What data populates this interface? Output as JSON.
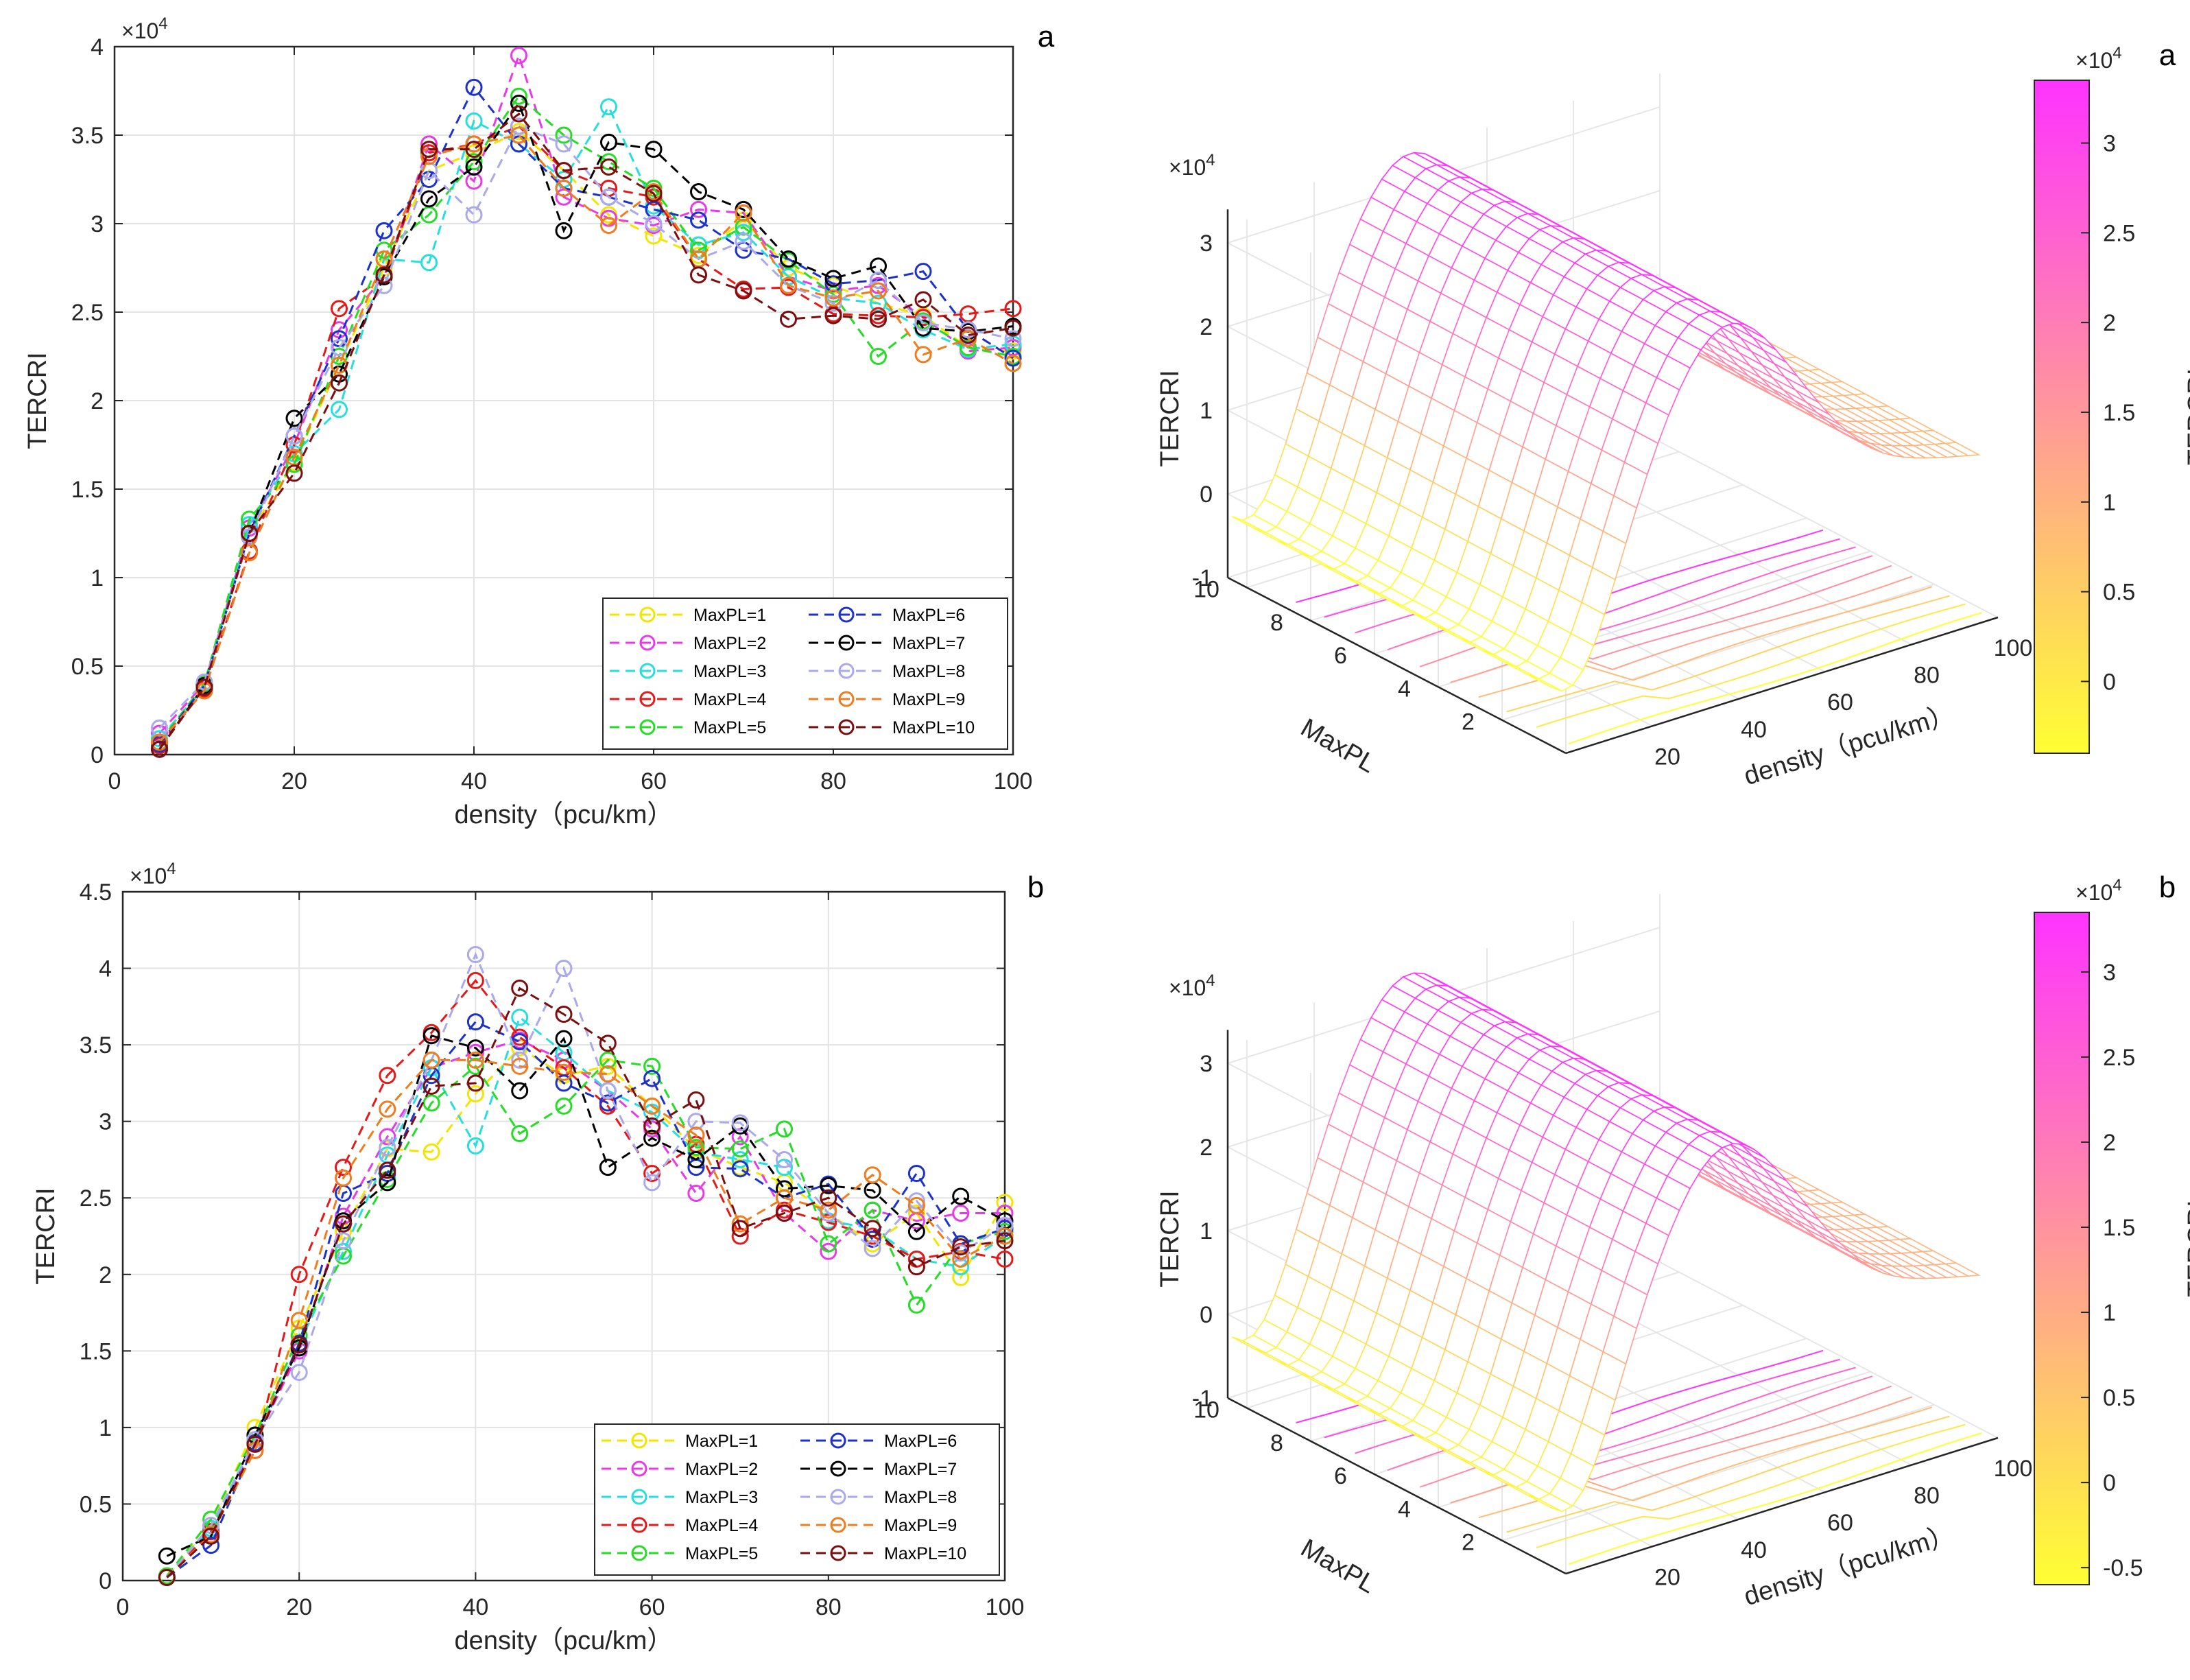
{
  "chart_data": [
    {
      "type": "line",
      "panel_label": "a",
      "xlabel": "density（pcu/km）",
      "ylabel": "TERCRI",
      "y_multiplier": "×10^4",
      "xlim": [
        0,
        100
      ],
      "ylim": [
        0,
        40000
      ],
      "x_ticks": [
        "0",
        "20",
        "40",
        "60",
        "80",
        "100"
      ],
      "y_ticks": [
        "0",
        "0.5",
        "1",
        "1.5",
        "2",
        "2.5",
        "3",
        "3.5",
        "4"
      ],
      "grid": true,
      "legend_position": "bottom-right",
      "x": [
        5,
        10,
        15,
        20,
        25,
        30,
        35,
        40,
        45,
        50,
        55,
        60,
        65,
        70,
        75,
        80,
        85,
        90,
        95,
        100
      ],
      "series": [
        {
          "name": "MaxPL=1",
          "color": "#f2e600",
          "values": [
            500,
            3900,
            12500,
            16500,
            22000,
            27500,
            33000,
            34000,
            35200,
            33000,
            30500,
            29300,
            28200,
            30200,
            27500,
            26500,
            25500,
            24800,
            23000,
            22800
          ]
        },
        {
          "name": "MaxPL=2",
          "color": "#e83be8",
          "values": [
            1200,
            4000,
            12800,
            17500,
            24000,
            27000,
            34500,
            32400,
            39500,
            31500,
            30300,
            29900,
            30800,
            30600,
            27000,
            26200,
            26500,
            24700,
            22800,
            23000
          ]
        },
        {
          "name": "MaxPL=3",
          "color": "#27dede",
          "values": [
            900,
            3800,
            13000,
            17000,
            19500,
            28000,
            27800,
            35800,
            34500,
            32500,
            36600,
            31000,
            28800,
            29500,
            27000,
            25800,
            25500,
            24000,
            22900,
            23200
          ]
        },
        {
          "name": "MaxPL=4",
          "color": "#e41a1a",
          "values": [
            500,
            3700,
            11500,
            17500,
            25200,
            27000,
            34000,
            34500,
            35500,
            33000,
            32000,
            31500,
            28000,
            26300,
            26400,
            24900,
            24800,
            24700,
            24900,
            25200
          ]
        },
        {
          "name": "MaxPL=5",
          "color": "#25dd25",
          "values": [
            700,
            4000,
            13300,
            16400,
            22500,
            28500,
            30500,
            33500,
            37200,
            35000,
            33500,
            32000,
            28500,
            29800,
            27900,
            26000,
            22500,
            24500,
            23000,
            22500
          ]
        },
        {
          "name": "MaxPL=6",
          "color": "#1c32c8",
          "values": [
            600,
            3900,
            12500,
            18000,
            23500,
            29600,
            32500,
            37700,
            34500,
            32000,
            31500,
            30800,
            30200,
            28500,
            28000,
            26600,
            26800,
            27300,
            24000,
            22400
          ]
        },
        {
          "name": "MaxPL=7",
          "color": "#000000",
          "values": [
            300,
            3900,
            12500,
            19000,
            21500,
            27000,
            31400,
            33200,
            36800,
            29600,
            34600,
            34200,
            31800,
            30800,
            28000,
            26900,
            27600,
            24100,
            23900,
            24200
          ]
        },
        {
          "name": "MaxPL=8",
          "color": "#a9a9ec",
          "values": [
            1500,
            4100,
            12300,
            18000,
            23000,
            26500,
            33000,
            30500,
            35500,
            34500,
            31500,
            30000,
            28000,
            29000,
            26500,
            25500,
            26800,
            24400,
            24000,
            23500
          ]
        },
        {
          "name": "MaxPL=9",
          "color": "#ed7d1e",
          "values": [
            700,
            3600,
            11400,
            16800,
            22000,
            28000,
            33800,
            34500,
            35000,
            32000,
            29900,
            31800,
            28000,
            30600,
            26500,
            25800,
            26200,
            22600,
            23500,
            22100
          ]
        },
        {
          "name": "MaxPL=10",
          "color": "#7a0f0f",
          "values": [
            300,
            3800,
            12500,
            15900,
            21000,
            27100,
            34200,
            34200,
            36200,
            33000,
            33200,
            31700,
            27100,
            26200,
            24600,
            24800,
            24600,
            25700,
            23700,
            24100
          ]
        }
      ]
    },
    {
      "type": "line",
      "panel_label": "b",
      "xlabel": "density（pcu/km）",
      "ylabel": "TERCRI",
      "y_multiplier": "×10^4",
      "xlim": [
        0,
        100
      ],
      "ylim": [
        0,
        45000
      ],
      "x_ticks": [
        "0",
        "20",
        "40",
        "60",
        "80",
        "100"
      ],
      "y_ticks": [
        "0",
        "0.5",
        "1",
        "1.5",
        "2",
        "2.5",
        "3",
        "3.5",
        "4",
        "4.5"
      ],
      "grid": true,
      "legend_position": "bottom-right",
      "x": [
        5,
        10,
        15,
        20,
        25,
        30,
        35,
        40,
        45,
        50,
        55,
        60,
        65,
        70,
        75,
        80,
        85,
        90,
        95,
        100
      ],
      "series": [
        {
          "name": "MaxPL=1",
          "color": "#f2e600",
          "values": [
            300,
            3600,
            10000,
            16500,
            22800,
            28200,
            28000,
            31800,
            34800,
            33000,
            33600,
            31000,
            28200,
            27000,
            26000,
            24000,
            22000,
            24000,
            19800,
            24700
          ]
        },
        {
          "name": "MaxPL=2",
          "color": "#e83be8",
          "values": [
            200,
            3200,
            9000,
            15000,
            23800,
            29000,
            33500,
            34500,
            35300,
            34000,
            32000,
            29500,
            25300,
            29000,
            24000,
            21500,
            24200,
            23500,
            24000,
            24000
          ]
        },
        {
          "name": "MaxPL=3",
          "color": "#27dede",
          "values": [
            200,
            3400,
            9200,
            15500,
            21500,
            27800,
            33500,
            28400,
            36800,
            34500,
            32000,
            30600,
            28000,
            27500,
            27000,
            23500,
            23000,
            21000,
            20500,
            22500
          ]
        },
        {
          "name": "MaxPL=4",
          "color": "#e41a1a",
          "values": [
            200,
            3200,
            8500,
            20000,
            27000,
            33000,
            35800,
            39200,
            35500,
            33500,
            31000,
            26600,
            28500,
            22500,
            24200,
            23400,
            22500,
            21000,
            21500,
            21000
          ]
        },
        {
          "name": "MaxPL=5",
          "color": "#25dd25",
          "values": [
            300,
            4000,
            9500,
            16000,
            21200,
            26200,
            31200,
            33600,
            29200,
            31000,
            34000,
            33600,
            28300,
            28200,
            29500,
            22000,
            24200,
            18000,
            22000,
            22800
          ]
        },
        {
          "name": "MaxPL=6",
          "color": "#1c32c8",
          "values": [
            200,
            2300,
            9000,
            15500,
            25300,
            26600,
            33000,
            36500,
            35200,
            32500,
            31200,
            32800,
            27000,
            26900,
            25000,
            25900,
            22300,
            26600,
            22000,
            23000
          ]
        },
        {
          "name": "MaxPL=7",
          "color": "#000000",
          "values": [
            1600,
            2900,
            9500,
            15200,
            23500,
            26000,
            35600,
            34800,
            32000,
            35400,
            27000,
            28900,
            27500,
            29700,
            25600,
            25800,
            25500,
            22800,
            25100,
            23500
          ]
        },
        {
          "name": "MaxPL=8",
          "color": "#a9a9ec",
          "values": [
            200,
            3600,
            9200,
            13600,
            22200,
            28300,
            34000,
            40900,
            34000,
            40000,
            32000,
            26000,
            30000,
            29900,
            27500,
            24000,
            21700,
            24800,
            21400,
            23200
          ]
        },
        {
          "name": "MaxPL=9",
          "color": "#ed7d1e",
          "values": [
            200,
            3000,
            8500,
            17000,
            26300,
            30800,
            34000,
            34000,
            33600,
            33200,
            33100,
            31000,
            29100,
            23300,
            25000,
            24200,
            26500,
            24500,
            21000,
            22500
          ]
        },
        {
          "name": "MaxPL=10",
          "color": "#7a0f0f",
          "values": [
            200,
            2900,
            8900,
            15400,
            23300,
            26800,
            32300,
            32500,
            38700,
            37000,
            35100,
            29700,
            31400,
            23000,
            24000,
            25000,
            23000,
            20500,
            21800,
            22200
          ]
        }
      ]
    },
    {
      "type": "surface",
      "panel_label": "a",
      "xlabel": "density（pcu/km）",
      "ylabel": "MaxPL",
      "zlabel": "TERCRI",
      "z_multiplier": "×10^4",
      "x_ticks": [
        "20",
        "40",
        "60",
        "80",
        "100"
      ],
      "y_ticks": [
        "2",
        "4",
        "6",
        "8",
        "10"
      ],
      "z_ticks": [
        "-1",
        "0",
        "1",
        "2",
        "3"
      ],
      "colorbar": {
        "label": "TERCRI",
        "multiplier": "×10^4",
        "ticks": [
          "0",
          "0.5",
          "1",
          "1.5",
          "2",
          "2.5",
          "3"
        ],
        "range": [
          -4000,
          33500
        ],
        "colors": [
          "#ffff33",
          "#ff33ff"
        ]
      }
    },
    {
      "type": "surface",
      "panel_label": "b",
      "xlabel": "density（pcu/km）",
      "ylabel": "MaxPL",
      "zlabel": "TERCRI",
      "z_multiplier": "×10^4",
      "x_ticks": [
        "20",
        "40",
        "60",
        "80",
        "100"
      ],
      "y_ticks": [
        "2",
        "4",
        "6",
        "8",
        "10"
      ],
      "z_ticks": [
        "-1",
        "0",
        "1",
        "2",
        "3"
      ],
      "colorbar": {
        "label": "TERCRI",
        "multiplier": "×10^4",
        "ticks": [
          "-0.5",
          "0",
          "0.5",
          "1",
          "1.5",
          "2",
          "2.5",
          "3"
        ],
        "range": [
          -6000,
          33500
        ],
        "colors": [
          "#ffff33",
          "#ff33ff"
        ]
      }
    }
  ]
}
